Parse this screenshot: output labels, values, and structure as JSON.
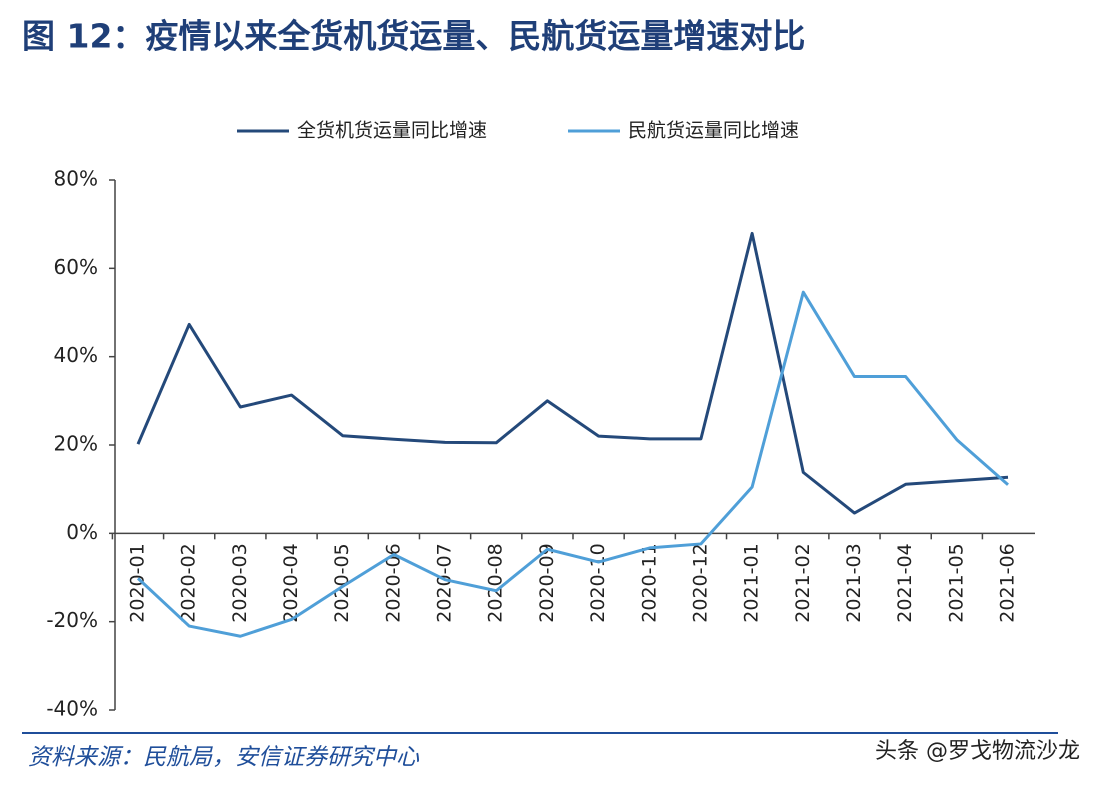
{
  "title": "图 12：疫情以来全货机货运量、民航货运量增速对比",
  "source": "资料来源：民航局，安信证券研究中心",
  "watermark": "头条 @罗戈物流沙龙",
  "chart_data": {
    "type": "line",
    "categories": [
      "2020-01",
      "2020-02",
      "2020-03",
      "2020-04",
      "2020-05",
      "2020-06",
      "2020-07",
      "2020-08",
      "2020-09",
      "2020-10",
      "2020-11",
      "2020-12",
      "2021-01",
      "2021-02",
      "2021-03",
      "2021-04",
      "2021-05",
      "2021-06"
    ],
    "series": [
      {
        "name": "全货机货运量同比增速",
        "color": "#24497a",
        "values": [
          20.2,
          47.3,
          28.6,
          31.3,
          22.1,
          21.3,
          20.6,
          20.5,
          30.0,
          22.0,
          21.4,
          21.4,
          67.9,
          13.8,
          4.6,
          11.1,
          11.9,
          12.7
        ]
      },
      {
        "name": "民航货运量同比增速",
        "color": "#4f9fd8",
        "values": [
          -10.2,
          -21.0,
          -23.3,
          -19.5,
          -12.0,
          -4.8,
          -10.5,
          -13.0,
          -3.6,
          -6.5,
          -3.3,
          -2.4,
          10.5,
          54.6,
          35.5,
          35.5,
          21.2,
          11.0
        ]
      }
    ],
    "ylim": [
      -40,
      80
    ],
    "yticks": [
      {
        "value": -40,
        "label": "-40%"
      },
      {
        "value": -20,
        "label": "-20%"
      },
      {
        "value": 0,
        "label": "0%"
      },
      {
        "value": 20,
        "label": "20%"
      },
      {
        "value": 40,
        "label": "40%"
      },
      {
        "value": 60,
        "label": "60%"
      },
      {
        "value": 80,
        "label": "80%"
      }
    ],
    "legend": "top"
  }
}
